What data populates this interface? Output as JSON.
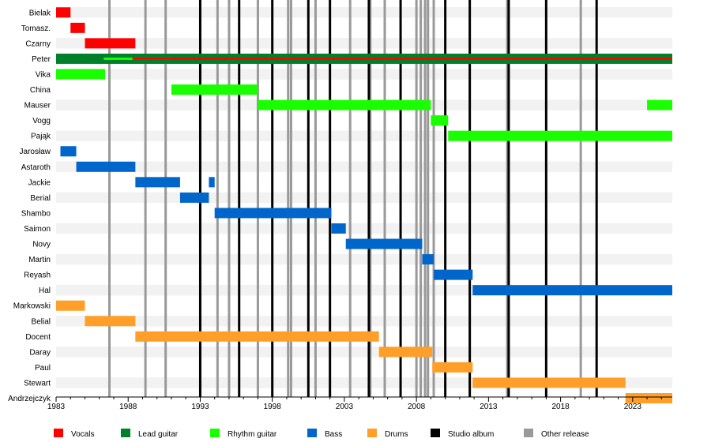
{
  "chart_data": {
    "type": "timeline",
    "title": "",
    "xlabel": "",
    "ylabel": "",
    "xlim": [
      1983.0,
      2025.75
    ],
    "x_ticks": [
      1983,
      1988,
      1993,
      1998,
      2003,
      2008,
      2013,
      2018,
      2023
    ],
    "grid": "alternating row bands",
    "colors": {
      "vocals": "#ff0000",
      "lead": "#00802b",
      "rhythm": "#1aff00",
      "bass": "#0066cc",
      "drums": "#ff9f2a",
      "studio": "#000000",
      "other": "#999999",
      "band": "#f2f2f2"
    },
    "members": [
      "Bielak",
      "Tomasz.",
      "Czarny",
      "Peter",
      "Vika",
      "China",
      "Mauser",
      "Vogg",
      "Pająk",
      "Jarosław",
      "Astaroth",
      "Jackie",
      "Berial",
      "Shambo",
      "Saimon",
      "Novy",
      "Martin",
      "Reyash",
      "Hal",
      "Markowski",
      "Belial",
      "Docent",
      "Daray",
      "Paul",
      "Stewart",
      "Andrzejczyk"
    ],
    "bars": [
      {
        "member": "Bielak",
        "role": "vocals",
        "start": 1983.0,
        "end": 1984.0
      },
      {
        "member": "Tomasz.",
        "role": "vocals",
        "start": 1984.0,
        "end": 1985.0
      },
      {
        "member": "Czarny",
        "role": "vocals",
        "start": 1985.0,
        "end": 1988.5
      },
      {
        "member": "Peter",
        "role": "lead",
        "start": 1983.0,
        "end": 2025.75
      },
      {
        "member": "Peter",
        "role": "rhythm",
        "start": 1986.3,
        "end": 1991.0
      },
      {
        "member": "Peter",
        "role": "vocals",
        "start": 1988.3,
        "end": 2025.75
      },
      {
        "member": "Vika",
        "role": "rhythm",
        "start": 1983.0,
        "end": 1986.4
      },
      {
        "member": "China",
        "role": "rhythm",
        "start": 1991.0,
        "end": 1997.0
      },
      {
        "member": "Mauser",
        "role": "rhythm",
        "start": 1997.0,
        "end": 2009.0
      },
      {
        "member": "Mauser",
        "role": "rhythm",
        "start": 2024.0,
        "end": 2025.75
      },
      {
        "member": "Vogg",
        "role": "rhythm",
        "start": 2009.0,
        "end": 2010.2
      },
      {
        "member": "Pająk",
        "role": "rhythm",
        "start": 2010.2,
        "end": 2025.75
      },
      {
        "member": "Jarosław",
        "role": "bass",
        "start": 1983.3,
        "end": 1984.4
      },
      {
        "member": "Astaroth",
        "role": "bass",
        "start": 1984.4,
        "end": 1988.5
      },
      {
        "member": "Jackie",
        "role": "bass",
        "start": 1988.5,
        "end": 1991.6
      },
      {
        "member": "Jackie",
        "role": "bass",
        "start": 1993.6,
        "end": 1994.0
      },
      {
        "member": "Berial",
        "role": "bass",
        "start": 1991.6,
        "end": 1993.6
      },
      {
        "member": "Shambo",
        "role": "bass",
        "start": 1994.0,
        "end": 2002.1
      },
      {
        "member": "Saimon",
        "role": "bass",
        "start": 2002.1,
        "end": 2003.1
      },
      {
        "member": "Novy",
        "role": "bass",
        "start": 2003.1,
        "end": 2008.4
      },
      {
        "member": "Martin",
        "role": "bass",
        "start": 2008.4,
        "end": 2009.2
      },
      {
        "member": "Reyash",
        "role": "bass",
        "start": 2009.2,
        "end": 2011.9
      },
      {
        "member": "Hal",
        "role": "bass",
        "start": 2011.9,
        "end": 2025.75
      },
      {
        "member": "Markowski",
        "role": "drums",
        "start": 1983.0,
        "end": 1985.0
      },
      {
        "member": "Belial",
        "role": "drums",
        "start": 1985.0,
        "end": 1988.5
      },
      {
        "member": "Docent",
        "role": "drums",
        "start": 1988.5,
        "end": 2005.4
      },
      {
        "member": "Daray",
        "role": "drums",
        "start": 2005.4,
        "end": 2009.1
      },
      {
        "member": "Paul",
        "role": "drums",
        "start": 2009.1,
        "end": 2011.9
      },
      {
        "member": "Stewart",
        "role": "drums",
        "start": 2011.9,
        "end": 2022.5
      },
      {
        "member": "Andrzejczyk",
        "role": "drums",
        "start": 2022.5,
        "end": 2025.75
      }
    ],
    "studio_albums": [
      1993.0,
      1995.7,
      1998.0,
      2000.5,
      2002.0,
      2004.7,
      2006.9,
      2010.0,
      2011.7,
      2014.4,
      2017.0,
      2020.5
    ],
    "other_releases": [
      1986.7,
      1989.2,
      1990.6,
      1994.2,
      1995.0,
      1997.0,
      1999.1,
      1999.3,
      2001.0,
      2003.4,
      2004.8,
      2005.8,
      2008.0,
      2008.3,
      2008.6,
      2008.8,
      2009.2,
      2014.3,
      2019.4
    ],
    "legend": [
      {
        "key": "vocals",
        "label": "Vocals"
      },
      {
        "key": "lead",
        "label": "Lead guitar"
      },
      {
        "key": "rhythm",
        "label": "Rhythm guitar"
      },
      {
        "key": "bass",
        "label": "Bass"
      },
      {
        "key": "drums",
        "label": "Drums"
      },
      {
        "key": "studio",
        "label": "Studio album"
      },
      {
        "key": "other",
        "label": "Other release"
      }
    ]
  }
}
